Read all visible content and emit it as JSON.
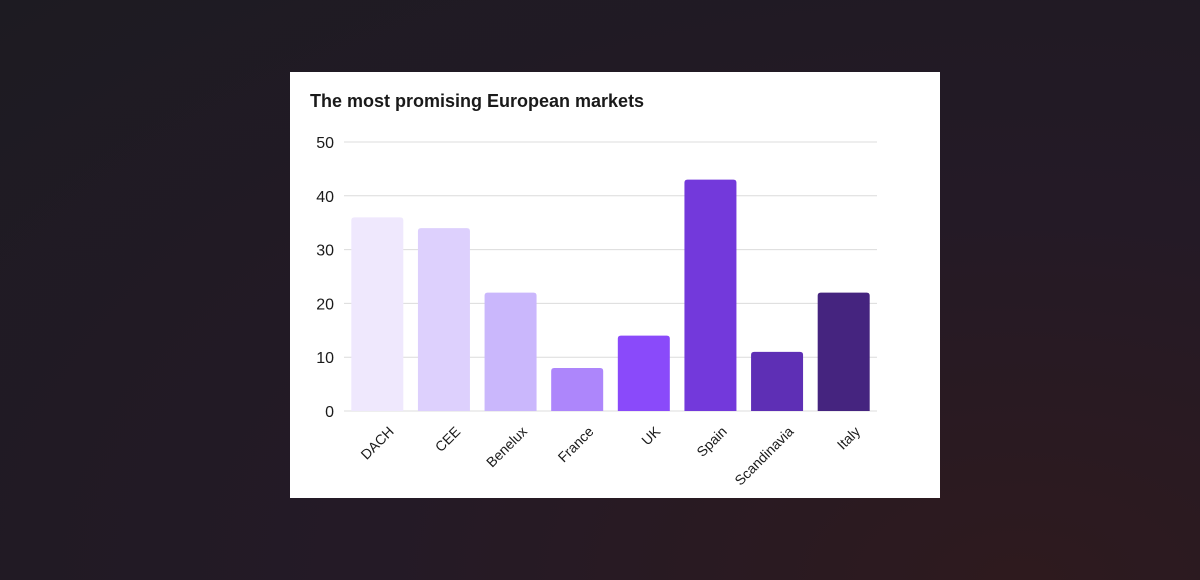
{
  "chart_data": {
    "type": "bar",
    "title": "The most promising European markets",
    "xlabel": "",
    "ylabel": "",
    "categories": [
      "DACH",
      "CEE",
      "Benelux",
      "France",
      "UK",
      "Spain",
      "Scandinavia",
      "Italy"
    ],
    "values": [
      36,
      34,
      22,
      8,
      14,
      43,
      11,
      22
    ],
    "ylim": [
      0,
      50
    ],
    "yticks": [
      0,
      10,
      20,
      30,
      40,
      50
    ],
    "grid": true,
    "legend": "none",
    "bar_colors": [
      "#efe8fd",
      "#ddd0fd",
      "#cab7fc",
      "#ad86fb",
      "#8a4afa",
      "#7339db",
      "#5e2fb5",
      "#45247f"
    ]
  }
}
